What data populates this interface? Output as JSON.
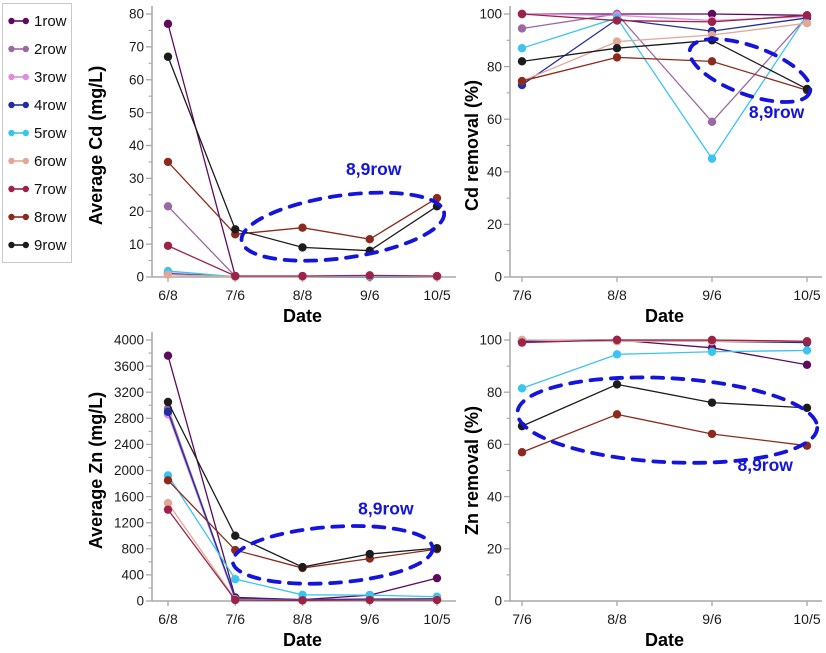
{
  "annotation_color": "#1414DC",
  "legend": {
    "items": [
      {
        "label": "1row",
        "color": "#5E0B5E"
      },
      {
        "label": "2row",
        "color": "#9A68A2"
      },
      {
        "label": "3row",
        "color": "#DC8EDC"
      },
      {
        "label": "4row",
        "color": "#202F9E"
      },
      {
        "label": "5row",
        "color": "#3AC4EF"
      },
      {
        "label": "6row",
        "color": "#E3A795"
      },
      {
        "label": "7row",
        "color": "#9C2247"
      },
      {
        "label": "8row",
        "color": "#8C2B1D"
      },
      {
        "label": "9row",
        "color": "#1C1C1C"
      }
    ]
  },
  "chart_data": [
    {
      "name": "average-cd",
      "type": "line",
      "title": "",
      "xlabel": "Date",
      "ylabel": "Average Cd (mg/L)",
      "categories": [
        "6/8",
        "7/6",
        "8/8",
        "9/6",
        "10/5"
      ],
      "ylim": [
        0,
        80
      ],
      "yticks": [
        0,
        10,
        20,
        30,
        40,
        50,
        60,
        70,
        80
      ],
      "yminor": 5,
      "grid": false,
      "series": [
        {
          "name": "1row",
          "values": [
            77,
            0.3,
            0.2,
            0.2,
            0.2
          ]
        },
        {
          "name": "2row",
          "values": [
            21.5,
            0.2,
            0.2,
            0.2,
            0.2
          ]
        },
        {
          "name": "3row",
          "values": [
            1.2,
            0.1,
            0.1,
            0.1,
            0.1
          ]
        },
        {
          "name": "4row",
          "values": [
            1.0,
            0.1,
            0.1,
            0.1,
            0.1
          ]
        },
        {
          "name": "5row",
          "values": [
            1.8,
            0.1,
            0.1,
            0.2,
            0.1
          ]
        },
        {
          "name": "6row",
          "values": [
            0.7,
            0.1,
            0.1,
            0.4,
            0.1
          ]
        },
        {
          "name": "7row",
          "values": [
            9.5,
            0.3,
            0.3,
            0.5,
            0.3
          ]
        },
        {
          "name": "8row",
          "values": [
            35,
            13,
            15,
            11.5,
            24
          ]
        },
        {
          "name": "9row",
          "values": [
            67,
            14.5,
            9,
            8,
            21.5
          ]
        }
      ],
      "annotation": {
        "label": "8,9row",
        "cx_idx": 2.6,
        "cy_val": 15.3,
        "rx_idx": 1.52,
        "ry_val": 9.5,
        "rot": -8,
        "lx_idx": 3.06,
        "ly_val": 31
      }
    },
    {
      "name": "cd-removal",
      "type": "line",
      "title": "",
      "xlabel": "Date",
      "ylabel": "Cd removal (%)",
      "categories": [
        "7/6",
        "8/8",
        "9/6",
        "10/5"
      ],
      "ylim": [
        0,
        100
      ],
      "yticks": [
        0,
        20,
        40,
        60,
        80,
        100
      ],
      "yminor": 10,
      "grid": false,
      "series": [
        {
          "name": "1row",
          "values": [
            100,
            100,
            100,
            99.5
          ]
        },
        {
          "name": "2row",
          "values": [
            94.5,
            100,
            59,
            99
          ]
        },
        {
          "name": "3row",
          "values": [
            100,
            99.5,
            97.5,
            99
          ]
        },
        {
          "name": "4row",
          "values": [
            73,
            98,
            93.5,
            98.5
          ]
        },
        {
          "name": "5row",
          "values": [
            87,
            98.5,
            45,
            99.5
          ]
        },
        {
          "name": "6row",
          "values": [
            74.5,
            89.5,
            92,
            96.5
          ]
        },
        {
          "name": "7row",
          "values": [
            100,
            97.5,
            97,
            99.5
          ]
        },
        {
          "name": "8row",
          "values": [
            74.5,
            83.5,
            82,
            71
          ]
        },
        {
          "name": "9row",
          "values": [
            82,
            87,
            90,
            71.5
          ]
        }
      ],
      "annotation": {
        "label": "8,9row",
        "cx_idx": 2.4,
        "cy_val": 78.5,
        "rx_idx": 0.67,
        "ry_val": 9.2,
        "rot": 20,
        "lx_idx": 2.68,
        "ly_val": 60.5
      }
    },
    {
      "name": "average-zn",
      "type": "line",
      "title": "",
      "xlabel": "Date",
      "ylabel": "Average Zn (mg/L)",
      "categories": [
        "6/8",
        "7/6",
        "8/8",
        "9/6",
        "10/5"
      ],
      "ylim": [
        0,
        4000
      ],
      "yticks": [
        0,
        400,
        800,
        1200,
        1600,
        2000,
        2400,
        2800,
        3200,
        3600,
        4000
      ],
      "yminor": 200,
      "grid": false,
      "series": [
        {
          "name": "1row",
          "values": [
            3760,
            55,
            20,
            90,
            350
          ]
        },
        {
          "name": "2row",
          "values": [
            2950,
            35,
            15,
            25,
            30
          ]
        },
        {
          "name": "3row",
          "values": [
            2860,
            20,
            10,
            20,
            25
          ]
        },
        {
          "name": "4row",
          "values": [
            2900,
            45,
            20,
            30,
            35
          ]
        },
        {
          "name": "5row",
          "values": [
            1925,
            335,
            95,
            90,
            65
          ]
        },
        {
          "name": "6row",
          "values": [
            1500,
            25,
            10,
            15,
            20
          ]
        },
        {
          "name": "7row",
          "values": [
            1400,
            15,
            10,
            15,
            15
          ]
        },
        {
          "name": "8row",
          "values": [
            1850,
            780,
            505,
            650,
            795
          ]
        },
        {
          "name": "9row",
          "values": [
            3050,
            1000,
            520,
            720,
            810
          ]
        }
      ],
      "annotation": {
        "label": "8,9row",
        "cx_idx": 2.45,
        "cy_val": 707,
        "rx_idx": 1.49,
        "ry_val": 430,
        "rot": -4,
        "lx_idx": 3.24,
        "ly_val": 1322
      }
    },
    {
      "name": "zn-removal",
      "type": "line",
      "title": "",
      "xlabel": "Date",
      "ylabel": "Zn removal (%)",
      "categories": [
        "7/6",
        "8/8",
        "9/6",
        "10/5"
      ],
      "ylim": [
        0,
        100
      ],
      "yticks": [
        0,
        20,
        40,
        60,
        80,
        100
      ],
      "yminor": 10,
      "grid": false,
      "series": [
        {
          "name": "1row",
          "values": [
            99.5,
            100,
            97,
            90.5
          ]
        },
        {
          "name": "2row",
          "values": [
            99.5,
            100,
            99.5,
            99.5
          ]
        },
        {
          "name": "3row",
          "values": [
            100,
            100,
            100,
            99.5
          ]
        },
        {
          "name": "4row",
          "values": [
            99.5,
            100,
            99.5,
            99
          ]
        },
        {
          "name": "5row",
          "values": [
            81.5,
            94.5,
            95.5,
            96
          ]
        },
        {
          "name": "6row",
          "values": [
            100,
            99.5,
            99.5,
            99.5
          ]
        },
        {
          "name": "7row",
          "values": [
            99,
            100,
            100,
            99.5
          ]
        },
        {
          "name": "8row",
          "values": [
            57,
            71.5,
            64,
            59.5
          ]
        },
        {
          "name": "9row",
          "values": [
            67,
            83,
            76,
            74
          ]
        }
      ],
      "annotation": {
        "label": "8,9row",
        "cx_idx": 1.53,
        "cy_val": 69.3,
        "rx_idx": 1.58,
        "ry_val": 16.1,
        "rot": 3,
        "lx_idx": 2.56,
        "ly_val": 49.8
      }
    }
  ]
}
